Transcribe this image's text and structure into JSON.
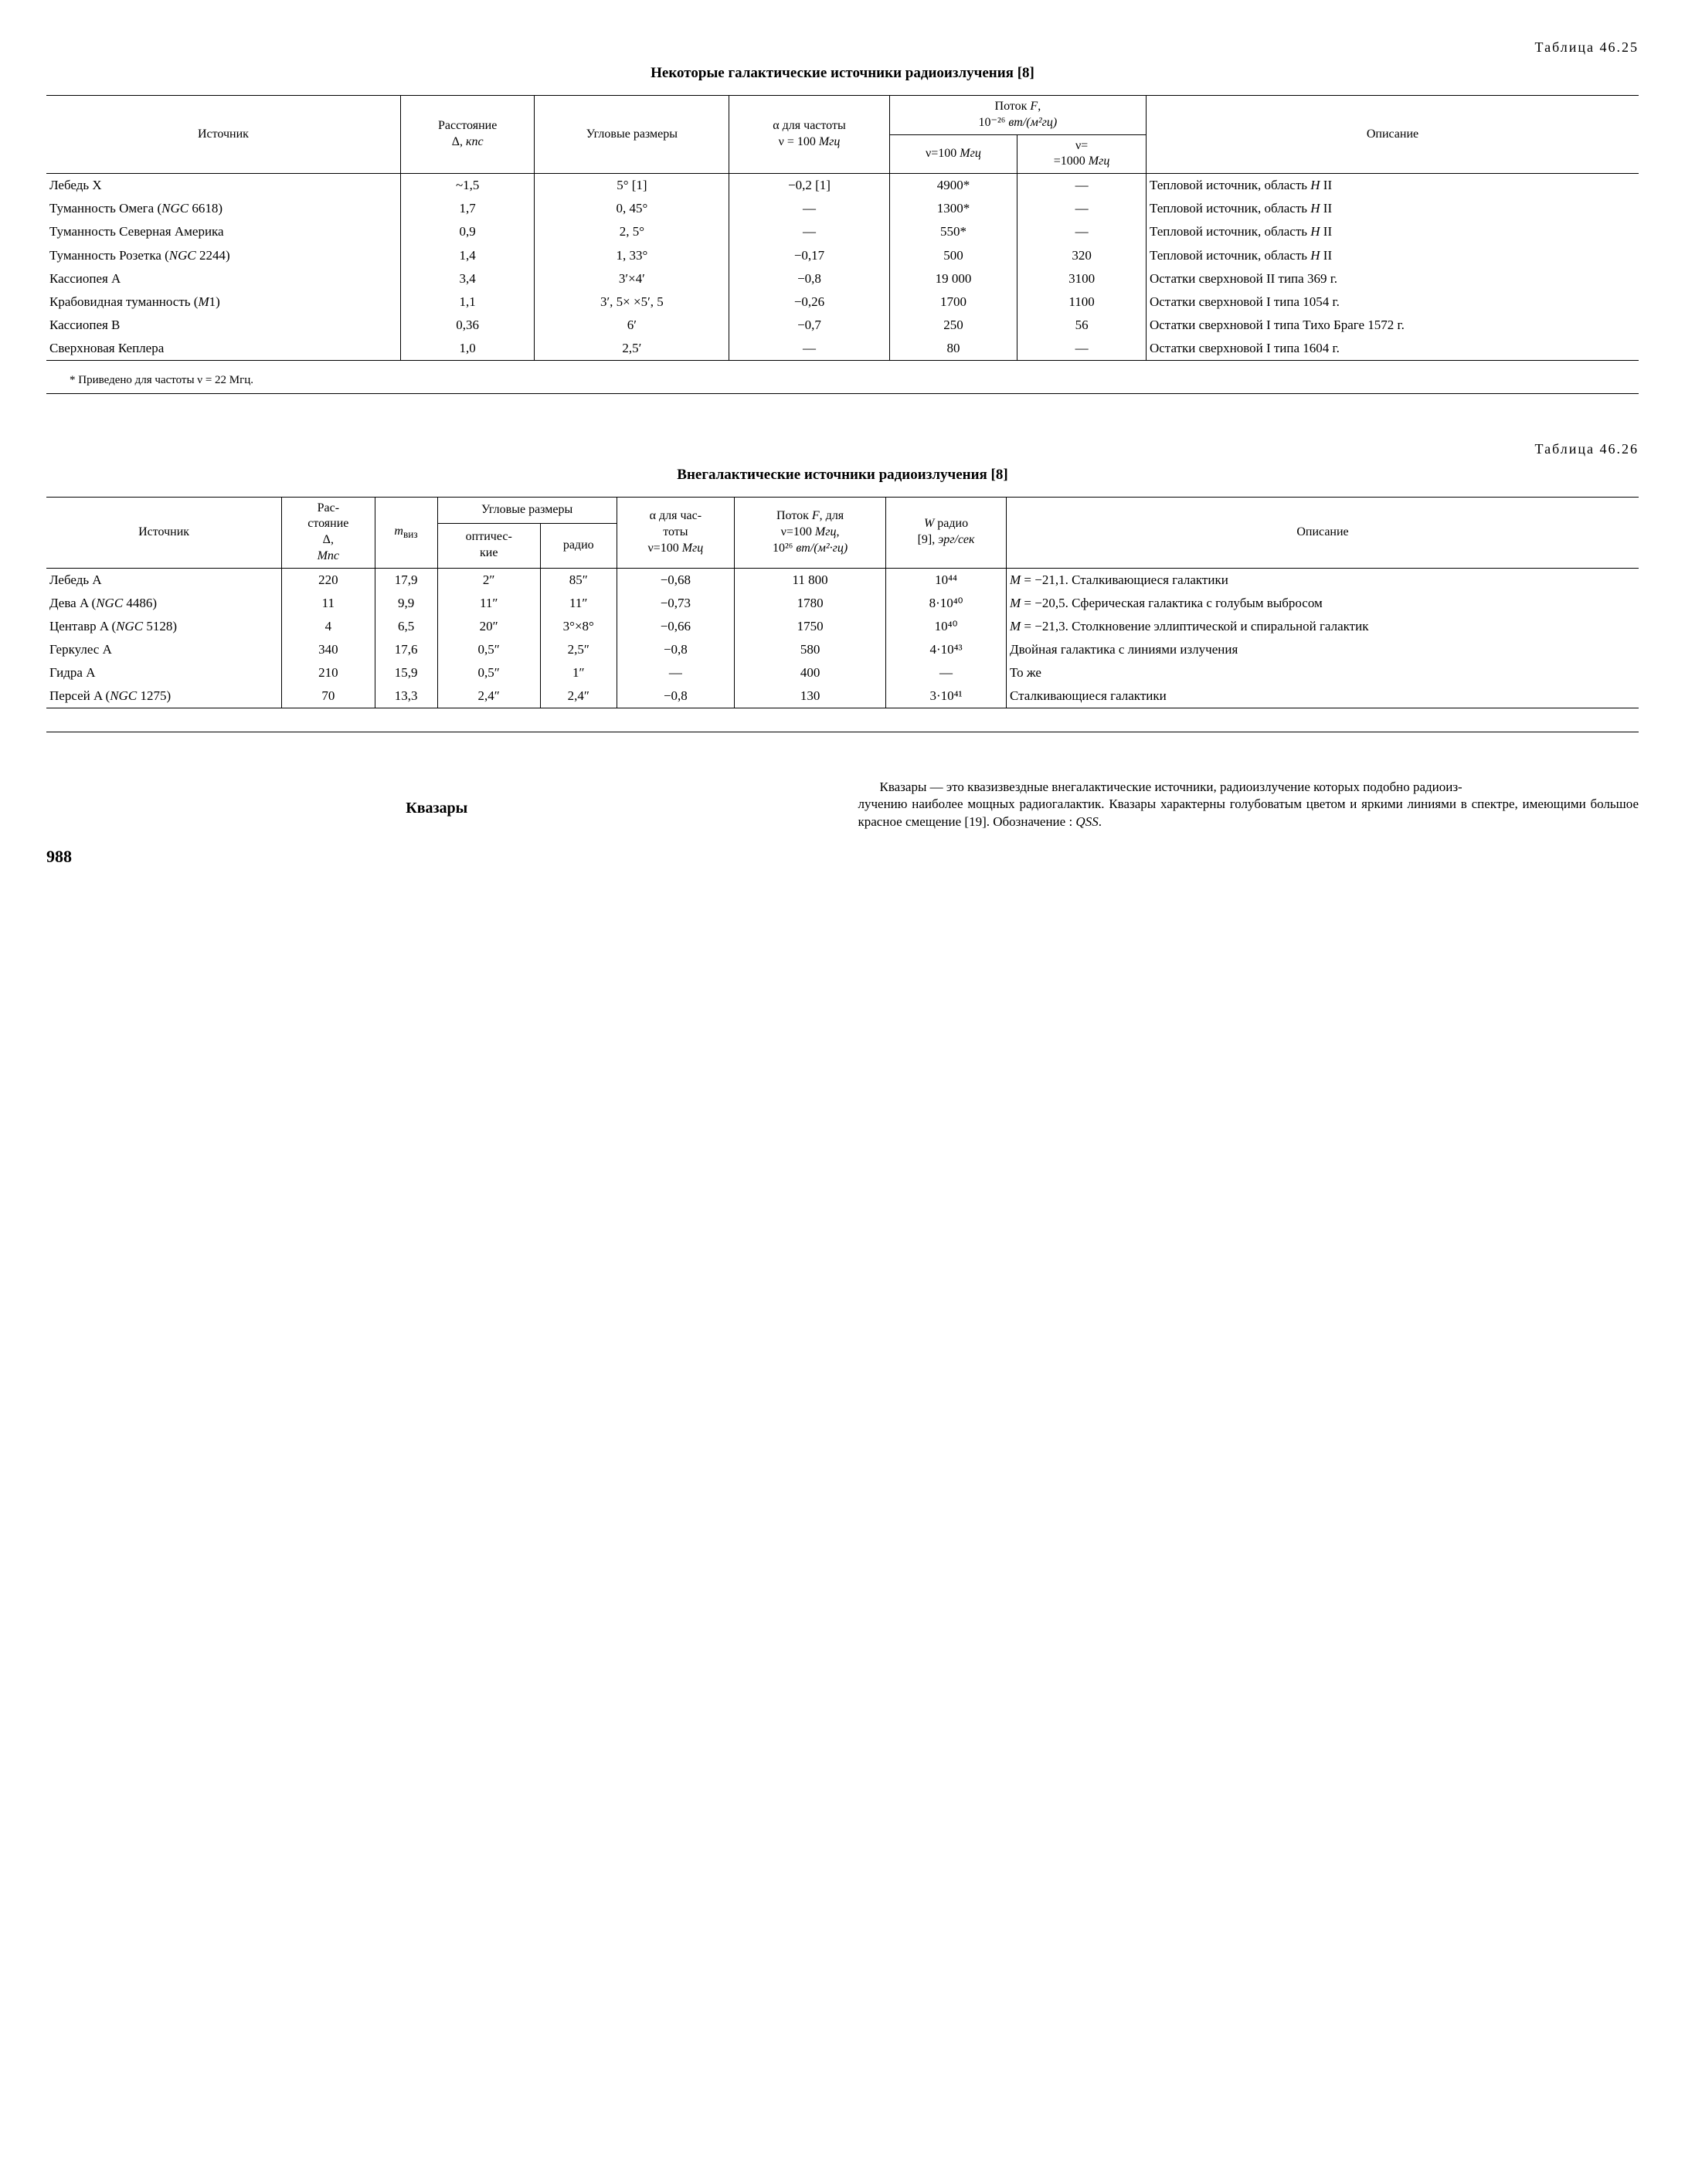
{
  "table1": {
    "label": "Таблица 46.25",
    "title": "Некоторые галактические источники радиоизлучения [8]",
    "headers": {
      "source": "Источник",
      "distance": "Расстояние Δ, кпс",
      "angular": "Угловые размеры",
      "alpha": "α для частоты ν = 100 Мгц",
      "flux_group": "Поток F, 10⁻²⁶ вт/(м²гц)",
      "flux_100": "ν=100 Мгц",
      "flux_1000": "ν= =1000 Мгц",
      "desc": "Описание"
    },
    "rows": [
      {
        "source": "Лебедь X",
        "dist": "~1,5",
        "ang": "5° [1]",
        "alpha": "−0,2 [1]",
        "f100": "4900*",
        "f1000": "—",
        "desc": "Тепловой источник, область H II"
      },
      {
        "source": "Туманность Омега (NGC 6618)",
        "dist": "1,7",
        "ang": "0, 45°",
        "alpha": "—",
        "f100": "1300*",
        "f1000": "—",
        "desc": "Тепловой источник, область H II"
      },
      {
        "source": "Туманность Северная Америка",
        "dist": "0,9",
        "ang": "2, 5°",
        "alpha": "—",
        "f100": "550*",
        "f1000": "—",
        "desc": "Тепловой источник, область H II"
      },
      {
        "source": "Туманность Розетка (NGC 2244)",
        "dist": "1,4",
        "ang": "1, 33°",
        "alpha": "−0,17",
        "f100": "500",
        "f1000": "320",
        "desc": "Тепловой источник, область H II"
      },
      {
        "source": "Кассиопея A",
        "dist": "3,4",
        "ang": "3′×4′",
        "alpha": "−0,8",
        "f100": "19 000",
        "f1000": "3100",
        "desc": "Остатки сверхновой II типа 369 г."
      },
      {
        "source": "Крабовидная туманность (M1)",
        "dist": "1,1",
        "ang": "3′, 5× ×5′, 5",
        "alpha": "−0,26",
        "f100": "1700",
        "f1000": "1100",
        "desc": "Остатки сверхновой I типа 1054 г."
      },
      {
        "source": "Кассиопея B",
        "dist": "0,36",
        "ang": "6′",
        "alpha": "−0,7",
        "f100": "250",
        "f1000": "56",
        "desc": "Остатки сверхновой I типа Тихо Браге 1572 г."
      },
      {
        "source": "Сверхновая Кеплера",
        "dist": "1,0",
        "ang": "2,5′",
        "alpha": "—",
        "f100": "80",
        "f1000": "—",
        "desc": "Остатки сверхновой I типа 1604 г."
      }
    ],
    "footnote": "* Приведено для частоты ν = 22 Мгц."
  },
  "table2": {
    "label": "Таблица 46.26",
    "title": "Внегалактические источники радиоизлучения [8]",
    "headers": {
      "source": "Источник",
      "distance": "Рас-стояние Δ, Мпс",
      "mvis": "mвиз",
      "ang_group": "Угловые размеры",
      "ang_opt": "оптичес-кие",
      "ang_radio": "радио",
      "alpha": "α для час-тоты ν=100 Мгц",
      "flux": "Поток F, для ν=100 Мгц, 10²⁶ вт/(м²·гц)",
      "wradio": "W радио [9], эрг/сек",
      "desc": "Описание"
    },
    "rows": [
      {
        "source": "Лебедь A",
        "dist": "220",
        "mvis": "17,9",
        "opt": "2″",
        "radio": "85″",
        "alpha": "−0,68",
        "flux": "11 800",
        "w": "10⁴⁴",
        "desc": "M = −21,1. Сталкивающиеся галактики"
      },
      {
        "source": "Дева A (NGC 4486)",
        "dist": "11",
        "mvis": "9,9",
        "opt": "11″",
        "radio": "11″",
        "alpha": "−0,73",
        "flux": "1780",
        "w": "8·10⁴⁰",
        "desc": "M=−20,5. Сферическая галактика с голубым выбросом"
      },
      {
        "source": "Центавр A (NGC 5128)",
        "dist": "4",
        "mvis": "6,5",
        "opt": "20″",
        "radio": "3°×8°",
        "alpha": "−0,66",
        "flux": "1750",
        "w": "10⁴⁰",
        "desc": "M = −21,3. Столкновение эллиптической и спиральной галактик"
      },
      {
        "source": "Геркулес A",
        "dist": "340",
        "mvis": "17,6",
        "opt": "0,5″",
        "radio": "2,5″",
        "alpha": "−0,8",
        "flux": "580",
        "w": "4·10⁴³",
        "desc": "Двойная галактика с линиями излучения"
      },
      {
        "source": "Гидра A",
        "dist": "210",
        "mvis": "15,9",
        "opt": "0,5″",
        "radio": "1″",
        "alpha": "—",
        "flux": "400",
        "w": "—",
        "desc": "То же"
      },
      {
        "source": "Персей A (NGC 1275)",
        "dist": "70",
        "mvis": "13,3",
        "opt": "2,4″",
        "radio": "2,4″",
        "alpha": "−0,8",
        "flux": "130",
        "w": "3·10⁴¹",
        "desc": "Сталкивающиеся галактики"
      }
    ]
  },
  "quasars": {
    "title": "Квазары",
    "text1": "Квазары — это квазизвездные внегалактические источники, радиоизлучение которых подобно радиоиз-",
    "text2": "лучению наиболее мощных радиогалактик. Квазары характерны голубоватым цветом и яркими линиями в спектре, имеющими большое красное смещение [19]. Обозначение : QSS."
  },
  "page_number": "988"
}
